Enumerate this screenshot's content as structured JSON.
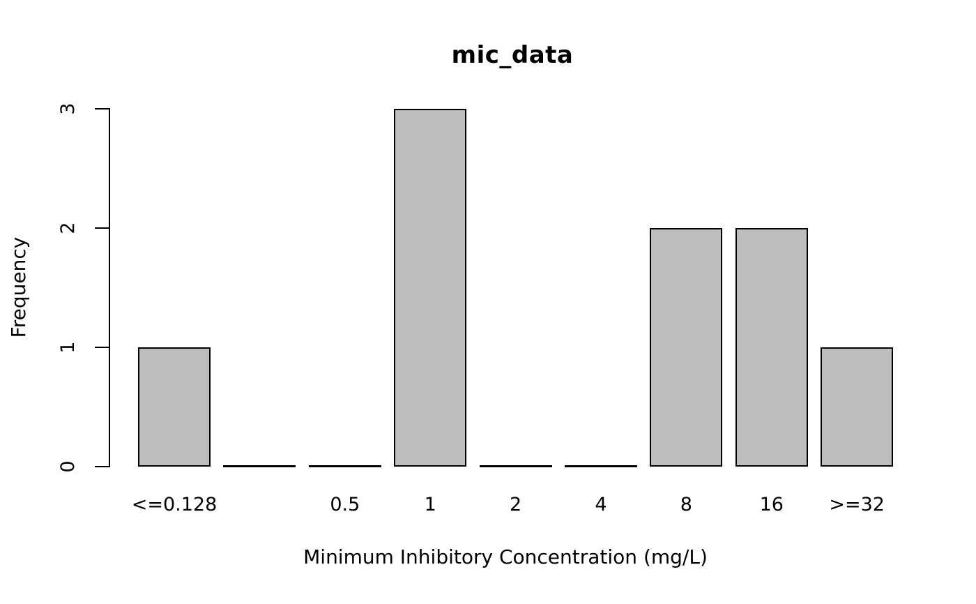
{
  "figure": {
    "background": "#ffffff",
    "text_color": "#000000"
  },
  "chart_data": {
    "type": "bar",
    "title": "mic_data",
    "xlabel": "Minimum Inhibitory Concentration (mg/L)",
    "ylabel": "Frequency",
    "categories": [
      "<=0.128",
      "",
      "0.5",
      "1",
      "2",
      "4",
      "8",
      "16",
      ">=32"
    ],
    "values": [
      1,
      0,
      0,
      3,
      0,
      0,
      2,
      2,
      1
    ],
    "yticks": [
      0,
      1,
      2,
      3
    ],
    "ylim": [
      0,
      3
    ],
    "grid": false,
    "legend": false,
    "bar_fill": "#bebebe",
    "bar_border": "#000000",
    "axis_color": "#000000"
  }
}
